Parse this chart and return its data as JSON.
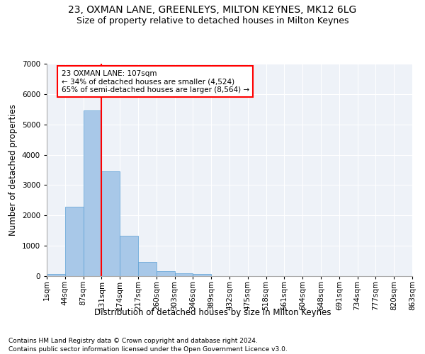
{
  "title": "23, OXMAN LANE, GREENLEYS, MILTON KEYNES, MK12 6LG",
  "subtitle": "Size of property relative to detached houses in Milton Keynes",
  "xlabel": "Distribution of detached houses by size in Milton Keynes",
  "ylabel": "Number of detached properties",
  "bar_values": [
    75,
    2280,
    5470,
    3450,
    1320,
    470,
    155,
    90,
    60,
    0,
    0,
    0,
    0,
    0,
    0,
    0,
    0,
    0,
    0,
    0
  ],
  "bin_labels": [
    "1sqm",
    "44sqm",
    "87sqm",
    "131sqm",
    "174sqm",
    "217sqm",
    "260sqm",
    "303sqm",
    "346sqm",
    "389sqm",
    "432sqm",
    "475sqm",
    "518sqm",
    "561sqm",
    "604sqm",
    "648sqm",
    "691sqm",
    "734sqm",
    "777sqm",
    "820sqm",
    "863sqm"
  ],
  "bar_color": "#a8c8e8",
  "bar_edge_color": "#5a9fd4",
  "vline_x": 2,
  "vline_color": "red",
  "ylim": [
    0,
    7000
  ],
  "yticks": [
    0,
    1000,
    2000,
    3000,
    4000,
    5000,
    6000,
    7000
  ],
  "annotation_text": "23 OXMAN LANE: 107sqm\n← 34% of detached houses are smaller (4,524)\n65% of semi-detached houses are larger (8,564) →",
  "annotation_box_color": "white",
  "annotation_box_edge_color": "red",
  "footer_text": "Contains HM Land Registry data © Crown copyright and database right 2024.\nContains public sector information licensed under the Open Government Licence v3.0.",
  "background_color": "#eef2f8",
  "grid_color": "white",
  "title_fontsize": 10,
  "subtitle_fontsize": 9,
  "axis_label_fontsize": 8.5,
  "tick_fontsize": 7.5,
  "annotation_fontsize": 7.5,
  "footer_fontsize": 6.5
}
